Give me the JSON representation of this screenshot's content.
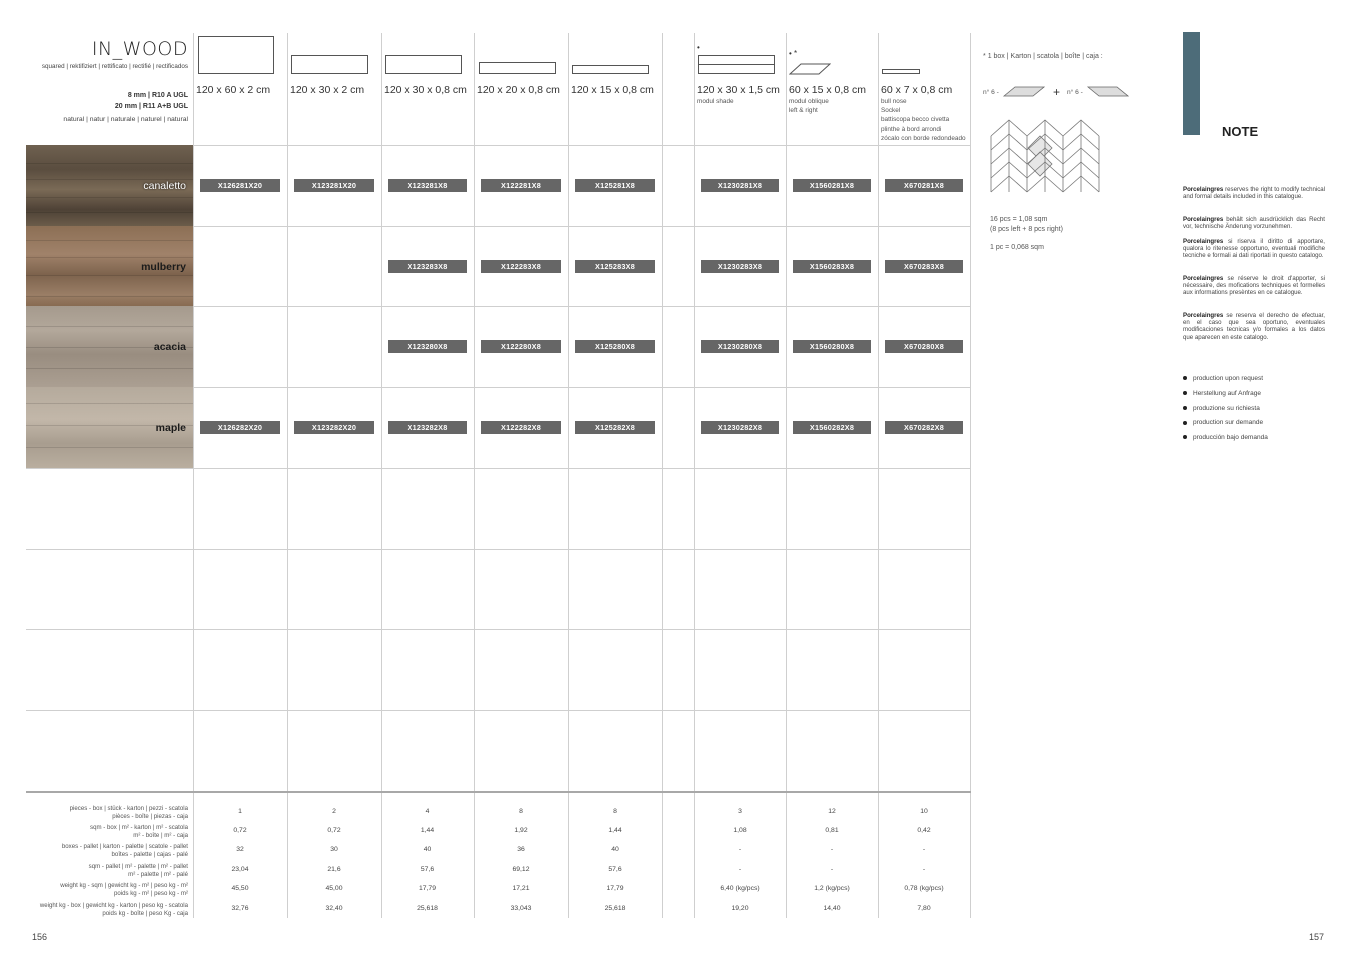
{
  "series": {
    "title": "IN_WOOD",
    "finish_sub": "squared | rektifiziert | rettificato | rectifié | rectificados",
    "spec_lines": [
      "8 mm | R10 A UGL",
      "20 mm | R11 A+B UGL"
    ],
    "surface": "natural | natur | naturale | naturel | natural"
  },
  "sizes": [
    {
      "label": "120 x 60 x 2 cm",
      "sub": []
    },
    {
      "label": "120 x 30 x 2 cm",
      "sub": []
    },
    {
      "label": "120 x 30 x 0,8 cm",
      "sub": []
    },
    {
      "label": "120 x 20 x 0,8 cm",
      "sub": []
    },
    {
      "label": "120 x 15 x 0,8 cm",
      "sub": []
    },
    {
      "label": "120 x 30 x 1,5 cm",
      "sub": [
        "modul shade"
      ]
    },
    {
      "label": "60 x 15 x 0,8 cm",
      "sub": [
        "modul oblique",
        "left & right"
      ]
    },
    {
      "label": "60 x 7 x 0,8 cm",
      "sub": [
        "bull nose",
        "Sockel",
        "battiscopa becco civetta",
        "plinthe à bord arrondi",
        "zócalo con borde redondeado"
      ]
    }
  ],
  "colors": [
    {
      "name": "canaletto",
      "codes": [
        "X126281X20",
        "X123281X20",
        "X123281X8",
        "X122281X8",
        "X125281X8",
        "X1230281X8",
        "X1560281X8",
        "X670281X8"
      ]
    },
    {
      "name": "mulberry",
      "codes": [
        "",
        "",
        "X123283X8",
        "X122283X8",
        "X125283X8",
        "X1230283X8",
        "X1560283X8",
        "X670283X8"
      ]
    },
    {
      "name": "acacia",
      "codes": [
        "",
        "",
        "X123280X8",
        "X122280X8",
        "X125280X8",
        "X1230280X8",
        "X1560280X8",
        "X670280X8"
      ]
    },
    {
      "name": "maple",
      "codes": [
        "X126282X20",
        "X123282X20",
        "X123282X8",
        "X122282X8",
        "X125282X8",
        "X1230282X8",
        "X1560282X8",
        "X670282X8"
      ]
    }
  ],
  "packing": {
    "rows": [
      {
        "label": [
          "pieces - box | stück - karton | pezzi - scatola",
          "pièces - boîte | piezas - caja"
        ],
        "values": [
          "1",
          "2",
          "4",
          "8",
          "8",
          "3",
          "12",
          "10"
        ]
      },
      {
        "label": [
          "sqm - box | m² - karton | m² - scatola",
          "m² - boîte | m² - caja"
        ],
        "values": [
          "0,72",
          "0,72",
          "1,44",
          "1,92",
          "1,44",
          "1,08",
          "0,81",
          "0,42"
        ]
      },
      {
        "label": [
          "boxes - pallet | karton - palette | scatole - pallet",
          "boîtes - palette | cajas - palé"
        ],
        "values": [
          "32",
          "30",
          "40",
          "36",
          "40",
          "-",
          "-",
          "-"
        ]
      },
      {
        "label": [
          "sqm - pallet | m² - palette | m² - pallet",
          "m² - palette | m² - palé"
        ],
        "values": [
          "23,04",
          "21,6",
          "57,6",
          "69,12",
          "57,6",
          "-",
          "-",
          "-"
        ]
      },
      {
        "label": [
          "weight kg - sqm | gewicht kg - m² | peso kg - m²",
          "poids kg - m² | peso kg - m²"
        ],
        "values": [
          "45,50",
          "45,00",
          "17,79",
          "17,21",
          "17,79",
          "6,40 (kg/pcs)",
          "1,2 (kg/pcs)",
          "0,78 (kg/pcs)"
        ]
      },
      {
        "label": [
          "weight kg - box | gewicht kg - karton | peso kg - scatola",
          "poids kg - boîte | peso Kg - caja"
        ],
        "values": [
          "32,76",
          "32,40",
          "25,618",
          "33,043",
          "25,618",
          "19,20",
          "14,40",
          "7,80"
        ]
      }
    ]
  },
  "box_info": {
    "star": "*",
    "text": "1 box | Karton | scatola | boîte | caja :",
    "n_left": "n° 6 -",
    "plus": "+",
    "n_right": "n° 6 -",
    "lines": [
      "16 pcs = 1,08 sqm",
      "(8 pcs left + 8 pcs right)",
      "1 pc = 0,068 sqm"
    ]
  },
  "notes": {
    "title": "NOTE",
    "paragraphs": [
      {
        "bold": "Porcelaingres",
        "text": " reserves the right to modify technical and formal details included in this catalogue."
      },
      {
        "bold": "Porcelaingres",
        "text": " behält sich ausdrücklich das Recht vor, technische Änderung vorzunehmen."
      },
      {
        "bold": "Porcelaingres",
        "text": " si riserva il diritto di apportare, qualora lo ritenesse opportuno, eventuali modifiche tecniche e formali ai dati riportati in questo catalogo."
      },
      {
        "bold": "Porcelaingres",
        "text": " se réserve le droit d'apporter, si nécessaire, des mofications techniques et formelles aux informations presèntes en ce catalogue."
      },
      {
        "bold": "Porcelaingres",
        "text": " se reserva el derecho de efectuar, en el caso que sea oportuno, eventuales modificaciones tecnicas y/o formales a los datos que aparecen en este catalogo."
      }
    ],
    "bullets": [
      "production upon request",
      "Herstellung auf Anfrage",
      "produzione su richiesta",
      "production sur demande",
      "producción bajo demanda"
    ]
  },
  "pages": {
    "left": "156",
    "right": "157"
  }
}
